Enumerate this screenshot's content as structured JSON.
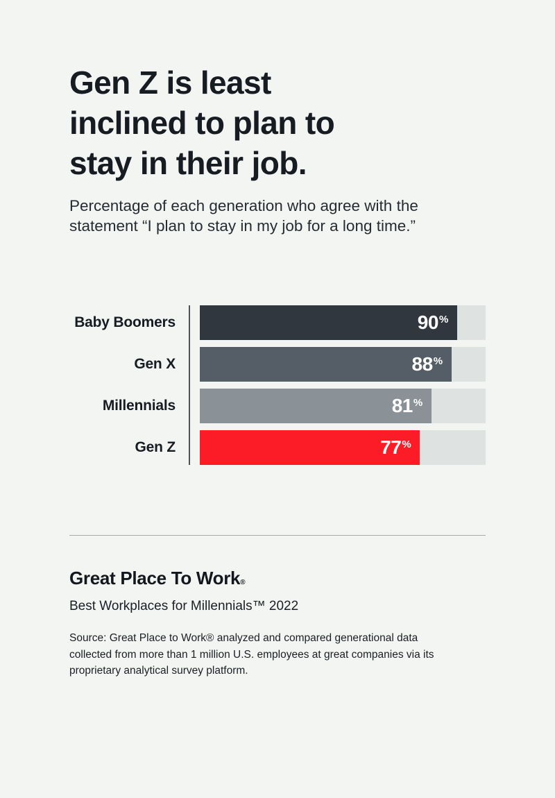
{
  "page": {
    "background": "#f3f5f2",
    "title_lines": [
      "Gen Z is least",
      "inclined to plan to",
      "stay in their job."
    ],
    "subtitle_lines": [
      "Percentage of each generation who agree with the",
      "statement “I plan to stay in my job for a long time.”"
    ]
  },
  "chart_data": {
    "type": "bar",
    "orientation": "horizontal",
    "title": "Gen Z is least inclined to plan to stay in their job.",
    "subtitle": "Percentage of each generation who agree with the statement “I plan to stay in my job for a long time.”",
    "categories": [
      "Baby Boomers",
      "Gen X",
      "Millennials",
      "Gen Z"
    ],
    "values": [
      90,
      88,
      81,
      77
    ],
    "value_suffix": "%",
    "xlim": [
      0,
      100
    ],
    "grid": false,
    "legend": "none",
    "bar_colors": [
      "#30373f",
      "#555d66",
      "#8a9298",
      "#fb1c27"
    ],
    "track_color": "#dee3e2",
    "value_label_color": "#ffffff",
    "accent_color": "#fb1c27"
  },
  "footer": {
    "brand": "Great Place To Work",
    "brand_registered": "®",
    "award_line": "Best Workplaces for Millennials™ 2022",
    "source_lines": [
      "Source: Great Place to Work® analyzed and compared generational data",
      "collected from more than 1 million U.S. employees at great companies via its",
      "proprietary analytical survey platform."
    ]
  }
}
